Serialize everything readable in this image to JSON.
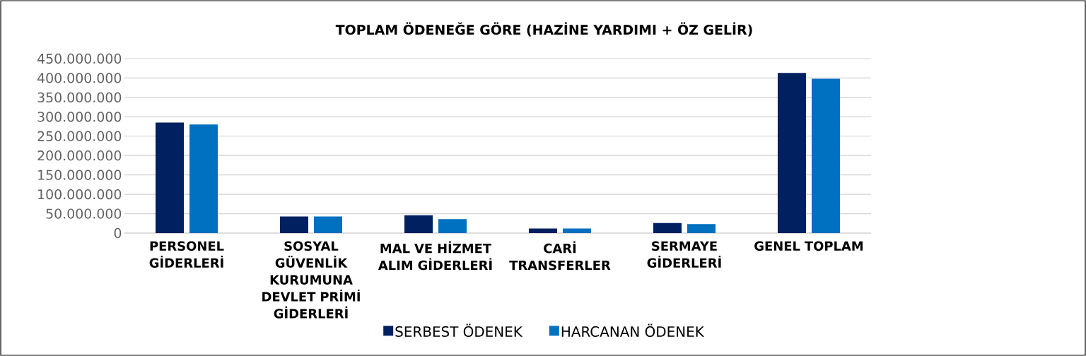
{
  "chart_data": {
    "type": "bar",
    "title": "TOPLAM ÖDENEĞE GÖRE (HAZİNE YARDIMI + ÖZ GELİR)",
    "categories": [
      "PERSONEL GİDERLERİ",
      "SOSYAL GÜVENLİK KURUMUNA DEVLET PRİMİ GİDERLERİ",
      "MAL VE HİZMET ALIM GİDERLERİ",
      "CARİ TRANSFERLER",
      "SERMAYE GİDERLERİ",
      "GENEL TOPLAM"
    ],
    "series": [
      {
        "name": "SERBEST ÖDENEK",
        "color": "#002060",
        "values": [
          285000000,
          43000000,
          46000000,
          12000000,
          26000000,
          413000000
        ]
      },
      {
        "name": "HARCANAN ÖDENEK",
        "color": "#0070c0",
        "values": [
          280000000,
          43000000,
          36000000,
          12000000,
          23000000,
          398000000
        ]
      }
    ],
    "ylim": [
      0,
      450000000
    ],
    "yticks": [
      {
        "value": 0,
        "label": "0"
      },
      {
        "value": 50000000,
        "label": "50.000.000"
      },
      {
        "value": 100000000,
        "label": "100.000.000"
      },
      {
        "value": 150000000,
        "label": "150.000.000"
      },
      {
        "value": 200000000,
        "label": "200.000.000"
      },
      {
        "value": 250000000,
        "label": "250.000.000"
      },
      {
        "value": 300000000,
        "label": "300.000.000"
      },
      {
        "value": 350000000,
        "label": "350.000.000"
      },
      {
        "value": 400000000,
        "label": "400.000.000"
      },
      {
        "value": 450000000,
        "label": "450.000.000"
      }
    ],
    "grid": "y",
    "legend": "bottom"
  }
}
